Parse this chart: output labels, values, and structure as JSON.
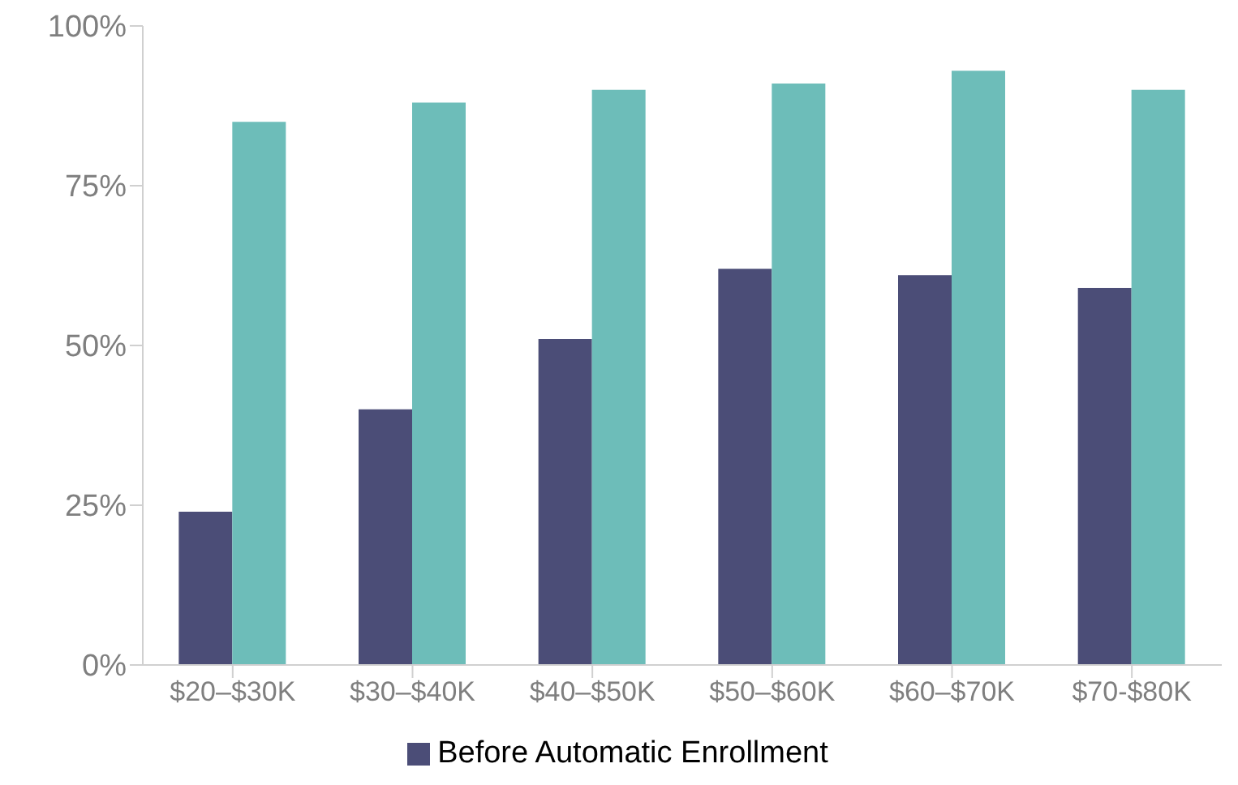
{
  "chart_data": {
    "type": "bar",
    "categories": [
      "$20–$30K",
      "$30–$40K",
      "$40–$50K",
      "$50–$60K",
      "$60–$70K",
      "$70-$80K"
    ],
    "series": [
      {
        "name": "Before Automatic Enrollment",
        "color": "#4b4d77",
        "values": [
          24,
          40,
          51,
          62,
          61,
          59
        ]
      },
      {
        "color": "#6dbdb9",
        "values": [
          85,
          88,
          90,
          91,
          93,
          90
        ]
      }
    ],
    "ylim": [
      0,
      100
    ],
    "yticks": [
      {
        "value": 0,
        "label": "0%"
      },
      {
        "value": 25,
        "label": "25%"
      },
      {
        "value": 50,
        "label": "50%"
      },
      {
        "value": 75,
        "label": "75%"
      },
      {
        "value": 100,
        "label": "100%"
      }
    ],
    "grid": false,
    "legend": "bottom"
  }
}
